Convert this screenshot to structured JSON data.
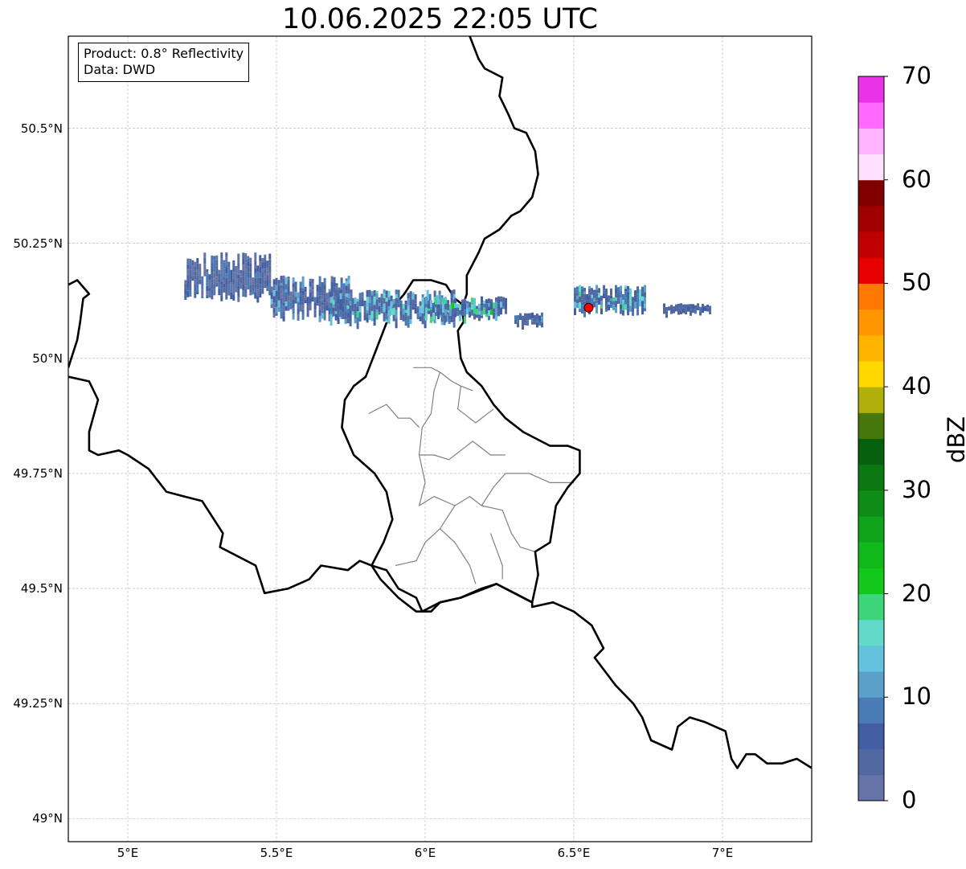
{
  "title": "10.06.2025 22:05 UTC",
  "info": {
    "product": "Product: 0.8° Reflectivity",
    "data_source": "Data: DWD"
  },
  "axes": {
    "lon_ticks": [
      {
        "value": 5.0,
        "label": "5°E"
      },
      {
        "value": 5.5,
        "label": "5.5°E"
      },
      {
        "value": 6.0,
        "label": "6°E"
      },
      {
        "value": 6.5,
        "label": "6.5°E"
      },
      {
        "value": 7.0,
        "label": "7°E"
      }
    ],
    "lat_ticks": [
      {
        "value": 50.5,
        "label": "50.5°N"
      },
      {
        "value": 50.25,
        "label": "50.25°N"
      },
      {
        "value": 50.0,
        "label": "50°N"
      },
      {
        "value": 49.75,
        "label": "49.75°N"
      },
      {
        "value": 49.5,
        "label": "49.5°N"
      },
      {
        "value": 49.25,
        "label": "49.25°N"
      },
      {
        "value": 49.0,
        "label": "49°N"
      }
    ],
    "lon_range": [
      4.8,
      7.3
    ],
    "lat_range": [
      48.95,
      50.7
    ],
    "grid": true
  },
  "colorbar": {
    "unit": "dBZ",
    "min": 0,
    "max": 70,
    "step": 2.5,
    "tick_labels": [
      {
        "value": 0,
        "label": "0"
      },
      {
        "value": 10,
        "label": "10"
      },
      {
        "value": 20,
        "label": "20"
      },
      {
        "value": 30,
        "label": "30"
      },
      {
        "value": 40,
        "label": "40"
      },
      {
        "value": 50,
        "label": "50"
      },
      {
        "value": 60,
        "label": "60"
      },
      {
        "value": 70,
        "label": "70"
      }
    ],
    "colors": [
      "#6674a8",
      "#5268a0",
      "#435ea2",
      "#4a7bb5",
      "#5ba0c9",
      "#63c3dd",
      "#63d9c9",
      "#3dd67a",
      "#12c81a",
      "#10b81a",
      "#10a41a",
      "#0f8c18",
      "#0c7812",
      "#06600e",
      "#46780c",
      "#b0b00a",
      "#ffd800",
      "#ffb400",
      "#ff9600",
      "#ff7800",
      "#e60000",
      "#c00000",
      "#a00000",
      "#800000",
      "#ffe1ff",
      "#ffb4ff",
      "#ff69ff",
      "#e833e8"
    ]
  },
  "radar_site": {
    "lon": 6.55,
    "lat": 50.11,
    "color": "#ff0000"
  },
  "echo_bands": [
    {
      "lon0": 5.19,
      "lon1": 5.48,
      "lat0": 50.13,
      "lat1": 50.23,
      "dbz": [
        2,
        10
      ]
    },
    {
      "lon0": 5.48,
      "lon1": 5.75,
      "lat0": 50.09,
      "lat1": 50.18,
      "dbz": [
        2,
        14
      ]
    },
    {
      "lon0": 5.68,
      "lon1": 6.1,
      "lat0": 50.075,
      "lat1": 50.15,
      "dbz": [
        3,
        18
      ]
    },
    {
      "lon0": 6.0,
      "lon1": 6.27,
      "lat0": 50.09,
      "lat1": 50.135,
      "dbz": [
        3,
        22
      ]
    },
    {
      "lon0": 6.3,
      "lon1": 6.39,
      "lat0": 50.075,
      "lat1": 50.1,
      "dbz": [
        3,
        12
      ]
    },
    {
      "lon0": 6.5,
      "lon1": 6.74,
      "lat0": 50.1,
      "lat1": 50.16,
      "dbz": [
        3,
        18
      ]
    },
    {
      "lon0": 6.8,
      "lon1": 6.96,
      "lat0": 50.1,
      "lat1": 50.12,
      "dbz": [
        3,
        8
      ]
    }
  ],
  "borders": {
    "national": [
      [
        [
          4.8,
          50.16
        ],
        [
          4.83,
          50.17
        ],
        [
          4.87,
          50.14
        ],
        [
          4.85,
          50.13
        ],
        [
          4.84,
          50.08
        ],
        [
          4.83,
          50.04
        ],
        [
          4.81,
          50.0
        ],
        [
          4.8,
          49.98
        ]
      ],
      [
        [
          4.8,
          49.96
        ],
        [
          4.87,
          49.95
        ],
        [
          4.9,
          49.91
        ],
        [
          4.87,
          49.84
        ],
        [
          4.87,
          49.8
        ],
        [
          4.9,
          49.79
        ],
        [
          4.97,
          49.8
        ],
        [
          5.0,
          49.79
        ],
        [
          5.07,
          49.76
        ],
        [
          5.13,
          49.71
        ],
        [
          5.19,
          49.7
        ],
        [
          5.25,
          49.69
        ],
        [
          5.32,
          49.62
        ],
        [
          5.31,
          49.59
        ],
        [
          5.34,
          49.58
        ],
        [
          5.43,
          49.55
        ],
        [
          5.46,
          49.49
        ],
        [
          5.54,
          49.5
        ],
        [
          5.61,
          49.52
        ],
        [
          5.65,
          49.55
        ],
        [
          5.74,
          49.54
        ],
        [
          5.78,
          49.56
        ],
        [
          5.82,
          49.55
        ],
        [
          5.85,
          49.52
        ],
        [
          5.91,
          49.48
        ],
        [
          5.97,
          49.45
        ],
        [
          6.02,
          49.45
        ],
        [
          6.05,
          49.47
        ],
        [
          6.12,
          49.48
        ],
        [
          6.2,
          49.5
        ],
        [
          6.24,
          49.51
        ],
        [
          6.3,
          49.49
        ],
        [
          6.36,
          49.47
        ],
        [
          6.36,
          49.46
        ],
        [
          6.43,
          49.47
        ],
        [
          6.5,
          49.45
        ],
        [
          6.56,
          49.42
        ],
        [
          6.6,
          49.37
        ],
        [
          6.57,
          49.35
        ],
        [
          6.64,
          49.29
        ],
        [
          6.7,
          49.25
        ],
        [
          6.73,
          49.22
        ],
        [
          6.76,
          49.17
        ],
        [
          6.83,
          49.15
        ],
        [
          6.85,
          49.2
        ],
        [
          6.89,
          49.22
        ],
        [
          6.94,
          49.21
        ],
        [
          7.01,
          49.19
        ],
        [
          7.03,
          49.13
        ],
        [
          7.05,
          49.11
        ],
        [
          7.08,
          49.14
        ],
        [
          7.11,
          49.14
        ],
        [
          7.15,
          49.12
        ],
        [
          7.2,
          49.12
        ],
        [
          7.25,
          49.13
        ],
        [
          7.3,
          49.11
        ]
      ],
      [
        [
          5.95,
          50.16
        ],
        [
          5.96,
          50.17
        ],
        [
          6.02,
          50.17
        ],
        [
          6.07,
          50.16
        ],
        [
          6.1,
          50.13
        ],
        [
          6.12,
          50.12
        ],
        [
          6.13,
          50.08
        ],
        [
          6.11,
          50.06
        ],
        [
          6.12,
          50.0
        ],
        [
          6.14,
          49.97
        ],
        [
          6.19,
          49.94
        ],
        [
          6.23,
          49.9
        ],
        [
          6.27,
          49.87
        ],
        [
          6.33,
          49.84
        ],
        [
          6.42,
          49.81
        ],
        [
          6.48,
          49.81
        ],
        [
          6.52,
          49.8
        ],
        [
          6.52,
          49.75
        ],
        [
          6.48,
          49.72
        ],
        [
          6.44,
          49.68
        ],
        [
          6.42,
          49.6
        ],
        [
          6.37,
          49.58
        ],
        [
          6.38,
          49.53
        ],
        [
          6.36,
          49.47
        ],
        [
          6.24,
          49.51
        ],
        [
          6.19,
          49.5
        ],
        [
          6.12,
          49.48
        ],
        [
          6.05,
          49.47
        ],
        [
          5.99,
          49.45
        ],
        [
          5.97,
          49.48
        ],
        [
          5.91,
          49.5
        ],
        [
          5.87,
          49.54
        ],
        [
          5.82,
          49.55
        ],
        [
          5.86,
          49.6
        ],
        [
          5.89,
          49.65
        ],
        [
          5.87,
          49.71
        ],
        [
          5.83,
          49.75
        ],
        [
          5.76,
          49.79
        ],
        [
          5.72,
          49.85
        ],
        [
          5.73,
          49.91
        ],
        [
          5.76,
          49.94
        ],
        [
          5.8,
          49.96
        ],
        [
          5.83,
          50.01
        ],
        [
          5.86,
          50.06
        ],
        [
          5.89,
          50.11
        ],
        [
          5.93,
          50.14
        ],
        [
          5.95,
          50.16
        ]
      ],
      [
        [
          6.13,
          50.12
        ],
        [
          6.14,
          50.14
        ],
        [
          6.14,
          50.18
        ],
        [
          6.18,
          50.23
        ],
        [
          6.2,
          50.26
        ],
        [
          6.25,
          50.28
        ],
        [
          6.29,
          50.31
        ],
        [
          6.32,
          50.32
        ],
        [
          6.36,
          50.35
        ],
        [
          6.38,
          50.4
        ],
        [
          6.37,
          50.45
        ],
        [
          6.34,
          50.49
        ],
        [
          6.3,
          50.5
        ],
        [
          6.28,
          50.53
        ],
        [
          6.25,
          50.57
        ],
        [
          6.26,
          50.61
        ],
        [
          6.2,
          50.63
        ],
        [
          6.18,
          50.65
        ],
        [
          6.15,
          50.7
        ]
      ]
    ],
    "internal": [
      [
        [
          5.96,
          49.98
        ],
        [
          6.02,
          49.98
        ],
        [
          6.05,
          49.97
        ],
        [
          6.09,
          49.95
        ],
        [
          6.12,
          49.94
        ],
        [
          6.16,
          49.93
        ]
      ],
      [
        [
          6.05,
          49.97
        ],
        [
          6.03,
          49.93
        ],
        [
          6.02,
          49.88
        ],
        [
          5.99,
          49.85
        ],
        [
          5.98,
          49.79
        ],
        [
          6.03,
          49.79
        ],
        [
          6.08,
          49.78
        ],
        [
          6.12,
          49.8
        ],
        [
          6.16,
          49.82
        ],
        [
          6.22,
          49.79
        ],
        [
          6.27,
          49.79
        ]
      ],
      [
        [
          6.12,
          49.94
        ],
        [
          6.11,
          49.89
        ],
        [
          6.17,
          49.86
        ],
        [
          6.23,
          49.89
        ]
      ],
      [
        [
          5.81,
          49.88
        ],
        [
          5.87,
          49.9
        ],
        [
          5.91,
          49.87
        ],
        [
          5.95,
          49.87
        ],
        [
          5.98,
          49.85
        ]
      ],
      [
        [
          5.98,
          49.79
        ],
        [
          6.0,
          49.73
        ],
        [
          5.98,
          49.68
        ],
        [
          6.03,
          49.7
        ],
        [
          6.1,
          49.68
        ],
        [
          6.15,
          49.7
        ],
        [
          6.19,
          49.68
        ],
        [
          6.23,
          49.72
        ],
        [
          6.27,
          49.75
        ],
        [
          6.35,
          49.75
        ],
        [
          6.42,
          49.73
        ],
        [
          6.5,
          49.73
        ]
      ],
      [
        [
          6.19,
          49.68
        ],
        [
          6.26,
          49.67
        ],
        [
          6.29,
          49.62
        ],
        [
          6.32,
          49.59
        ],
        [
          6.37,
          49.58
        ]
      ],
      [
        [
          6.1,
          49.68
        ],
        [
          6.05,
          49.63
        ],
        [
          6.0,
          49.6
        ],
        [
          5.97,
          49.56
        ],
        [
          5.9,
          49.55
        ]
      ],
      [
        [
          6.05,
          49.63
        ],
        [
          6.1,
          49.6
        ],
        [
          6.15,
          49.55
        ],
        [
          6.17,
          49.51
        ]
      ],
      [
        [
          6.22,
          49.62
        ],
        [
          6.26,
          49.55
        ],
        [
          6.26,
          49.52
        ]
      ]
    ]
  }
}
